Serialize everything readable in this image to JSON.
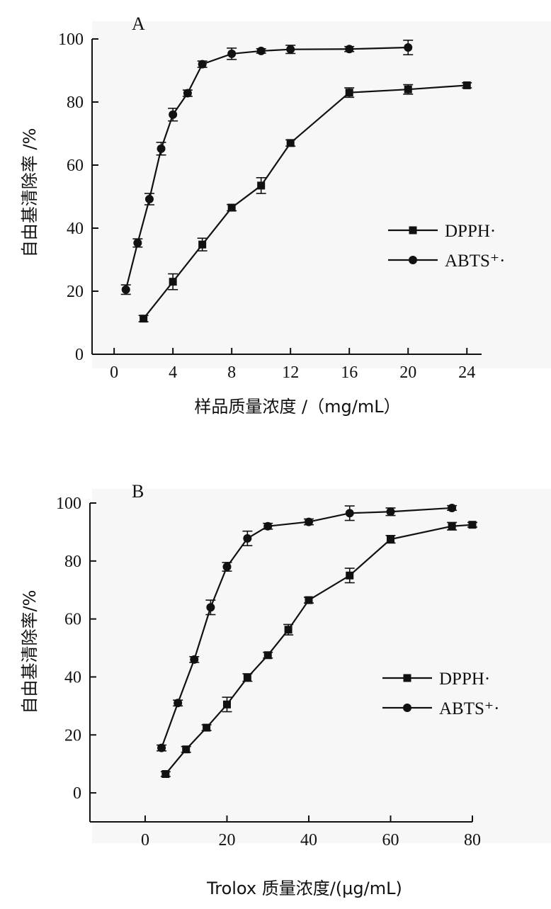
{
  "chart_data": [
    {
      "type": "line",
      "panel_label": "A",
      "xlabel": "样品质量浓度 /（mg/mL）",
      "ylabel": "自由基清除率 /%",
      "xlim": [
        -1.5,
        25
      ],
      "ylim": [
        0,
        100
      ],
      "x_ticks": [
        0,
        4,
        8,
        12,
        16,
        20,
        24
      ],
      "y_ticks": [
        0,
        20,
        40,
        60,
        80,
        100
      ],
      "legend_position": "middle-right",
      "series": [
        {
          "name": "DPPH·",
          "marker": "square",
          "points": [
            {
              "x": 2,
              "y": 11.3,
              "err": 1.0
            },
            {
              "x": 4,
              "y": 23.0,
              "err": 2.5
            },
            {
              "x": 6,
              "y": 34.8,
              "err": 2.0
            },
            {
              "x": 8,
              "y": 46.5,
              "err": 1.0
            },
            {
              "x": 10,
              "y": 53.5,
              "err": 2.5
            },
            {
              "x": 12,
              "y": 67.0,
              "err": 1.0
            },
            {
              "x": 16,
              "y": 83.0,
              "err": 1.5
            },
            {
              "x": 20,
              "y": 84.0,
              "err": 1.5
            },
            {
              "x": 24,
              "y": 85.3,
              "err": 0.8
            }
          ]
        },
        {
          "name": "ABTS⁺·",
          "marker": "circle",
          "points": [
            {
              "x": 0.8,
              "y": 20.5,
              "err": 1.5
            },
            {
              "x": 1.6,
              "y": 35.3,
              "err": 1.3
            },
            {
              "x": 2.4,
              "y": 49.2,
              "err": 1.8
            },
            {
              "x": 3.2,
              "y": 65.2,
              "err": 2.0
            },
            {
              "x": 4.0,
              "y": 76.0,
              "err": 2.0
            },
            {
              "x": 5.0,
              "y": 82.8,
              "err": 1.0
            },
            {
              "x": 6.0,
              "y": 92.0,
              "err": 1.0
            },
            {
              "x": 8.0,
              "y": 95.3,
              "err": 1.8
            },
            {
              "x": 10.0,
              "y": 96.2,
              "err": 0.7
            },
            {
              "x": 12.0,
              "y": 96.7,
              "err": 1.3
            },
            {
              "x": 16.0,
              "y": 96.8,
              "err": 0.8
            },
            {
              "x": 20.0,
              "y": 97.3,
              "err": 2.3
            }
          ]
        }
      ]
    },
    {
      "type": "line",
      "panel_label": "B",
      "xlabel": "Trolox 质量浓度/(μg/mL)",
      "ylabel": "自由基清除率/%",
      "xlim": [
        -13.5,
        80
      ],
      "ylim": [
        -10,
        100
      ],
      "x_ticks": [
        0,
        20,
        40,
        60,
        80
      ],
      "y_ticks": [
        0,
        20,
        40,
        60,
        80,
        100
      ],
      "legend_position": "middle-right",
      "series": [
        {
          "name": "DPPH·",
          "marker": "square",
          "points": [
            {
              "x": 5,
              "y": 6.5,
              "err": 0.8
            },
            {
              "x": 10,
              "y": 15.0,
              "err": 1.0
            },
            {
              "x": 15,
              "y": 22.5,
              "err": 1.0
            },
            {
              "x": 20,
              "y": 30.5,
              "err": 2.5
            },
            {
              "x": 25,
              "y": 39.8,
              "err": 1.3
            },
            {
              "x": 30,
              "y": 47.5,
              "err": 1.0
            },
            {
              "x": 35,
              "y": 56.3,
              "err": 1.8
            },
            {
              "x": 40,
              "y": 66.5,
              "err": 1.0
            },
            {
              "x": 50,
              "y": 75.0,
              "err": 2.5
            },
            {
              "x": 60,
              "y": 87.5,
              "err": 1.3
            },
            {
              "x": 75,
              "y": 92.0,
              "err": 1.3
            },
            {
              "x": 80,
              "y": 92.5,
              "err": 0.8
            }
          ]
        },
        {
          "name": "ABTS⁺·",
          "marker": "circle",
          "points": [
            {
              "x": 4,
              "y": 15.5,
              "err": 1.0
            },
            {
              "x": 8,
              "y": 31.0,
              "err": 1.0
            },
            {
              "x": 12,
              "y": 46.0,
              "err": 1.0
            },
            {
              "x": 16,
              "y": 64.0,
              "err": 2.5
            },
            {
              "x": 20,
              "y": 78.0,
              "err": 1.5
            },
            {
              "x": 25,
              "y": 87.8,
              "err": 2.5
            },
            {
              "x": 30,
              "y": 92.0,
              "err": 1.0
            },
            {
              "x": 40,
              "y": 93.5,
              "err": 1.0
            },
            {
              "x": 50,
              "y": 96.5,
              "err": 2.5
            },
            {
              "x": 60,
              "y": 97.0,
              "err": 1.3
            },
            {
              "x": 75,
              "y": 98.3,
              "err": 0.8
            }
          ]
        }
      ]
    }
  ]
}
